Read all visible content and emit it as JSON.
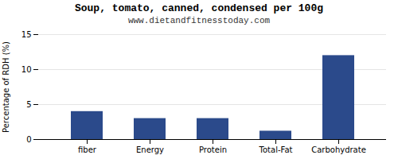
{
  "chart_data": {
    "type": "bar",
    "title": "Soup, tomato, canned, condensed per 100g",
    "subtitle": "www.dietandfitnesstoday.com",
    "categories": [
      "fiber",
      "Energy",
      "Protein",
      "Total-Fat",
      "Carbohydrate"
    ],
    "values": [
      4.0,
      3.0,
      3.0,
      1.2,
      12.0
    ],
    "color": "#2b4a8b",
    "ylabel": "Percentage of RDH (%)",
    "ylim": [
      0,
      15
    ],
    "yticks": [
      0,
      5,
      10,
      15
    ],
    "grid": true
  }
}
